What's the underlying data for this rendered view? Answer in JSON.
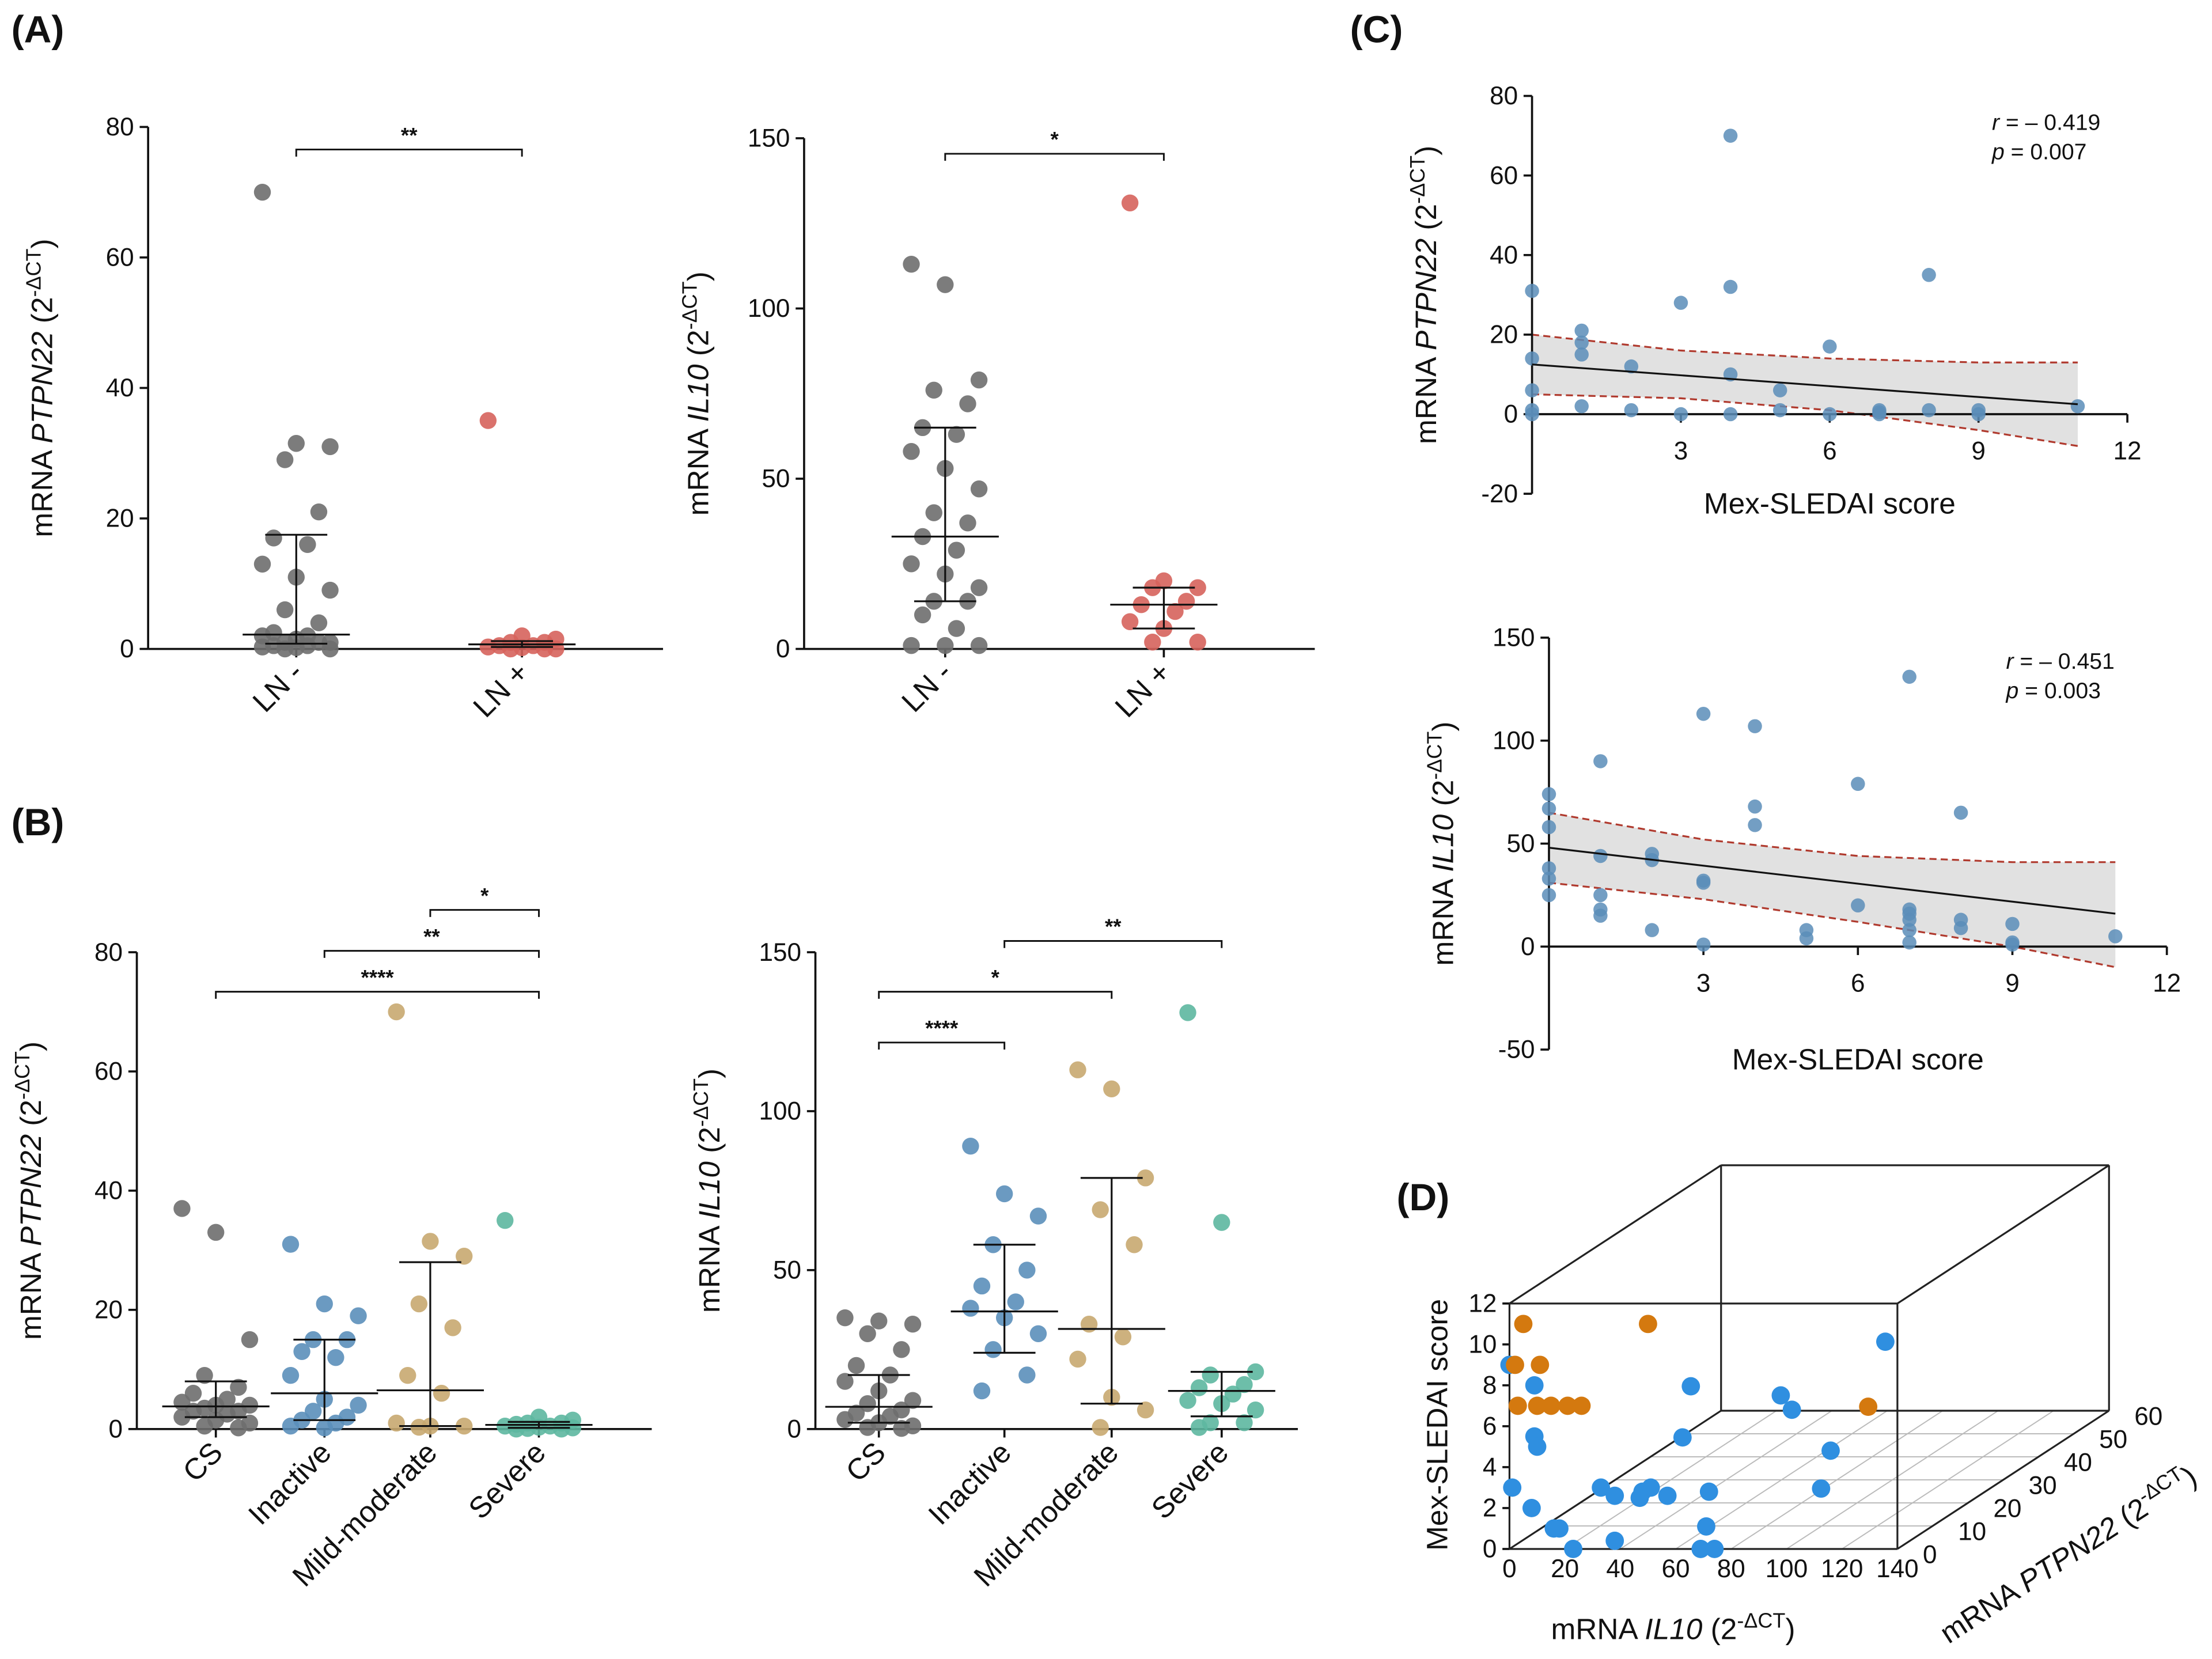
{
  "panels": [
    "(A)",
    "(B)",
    "(C)",
    "(D)"
  ],
  "chart_data": [
    {
      "type": "dot",
      "ylabel": [
        "mRNA ",
        "PTPN22",
        " (2",
        "-ΔCT",
        ")"
      ],
      "categories": [
        "LN -",
        "LN +"
      ],
      "ylim": [
        0,
        80
      ],
      "yticks": [
        0,
        20,
        40,
        60,
        80
      ],
      "groups": [
        {
          "color": "#6e6e6e",
          "values": [
            70,
            31.5,
            31,
            29,
            21,
            17,
            16,
            13,
            11,
            9,
            6,
            4,
            2.5,
            2,
            2,
            1.5,
            1,
            1,
            1,
            0.5,
            0.5,
            0.3,
            0.2,
            0,
            0
          ],
          "median": 2.2,
          "iqr": [
            0.8,
            17.5
          ]
        },
        {
          "color": "#d6635c",
          "values": [
            35,
            2,
            1.5,
            1,
            1,
            0.5,
            0.5,
            0.3,
            0.2,
            0,
            0,
            0
          ],
          "median": 0.7,
          "iqr": [
            0.3,
            1.2
          ]
        }
      ],
      "brackets": [
        {
          "from": 0,
          "to": 1,
          "label": "**"
        }
      ]
    },
    {
      "type": "dot",
      "ylabel": [
        "mRNA ",
        "IL10",
        " (2",
        "-ΔCT",
        ")"
      ],
      "categories": [
        "LN -",
        "LN +"
      ],
      "ylim": [
        0,
        150
      ],
      "yticks": [
        0,
        50,
        100,
        150
      ],
      "groups": [
        {
          "color": "#6e6e6e",
          "values": [
            113,
            107,
            79,
            76,
            72,
            65,
            63,
            58,
            53,
            47,
            40,
            37,
            33,
            29,
            25,
            22,
            18,
            14,
            14,
            10,
            6,
            1,
            1,
            1
          ],
          "median": 33,
          "iqr": [
            14,
            65
          ]
        },
        {
          "color": "#d6635c",
          "values": [
            131,
            20,
            18,
            18,
            14,
            13,
            11,
            8,
            6,
            2,
            2
          ],
          "median": 13,
          "iqr": [
            6,
            18
          ]
        }
      ],
      "brackets": [
        {
          "from": 0,
          "to": 1,
          "label": "*"
        }
      ]
    },
    {
      "type": "dot",
      "ylabel": [
        "mRNA ",
        "PTPN22",
        " (2",
        "-ΔCT",
        ")"
      ],
      "categories": [
        "CS",
        "Inactive",
        "Mild-moderate",
        "Severe"
      ],
      "ylim": [
        0,
        80
      ],
      "yticks": [
        0,
        20,
        40,
        60,
        80
      ],
      "groups": [
        {
          "color": "#6e6e6e",
          "values": [
            37,
            33,
            15,
            9,
            7,
            6,
            5,
            4.5,
            4,
            4,
            3.5,
            3,
            3,
            2.5,
            2,
            1.5,
            1,
            0.5,
            0.2
          ],
          "median": 3.8,
          "iqr": [
            2,
            8
          ]
        },
        {
          "color": "#5b8fba",
          "values": [
            31,
            21,
            19,
            15,
            15,
            13,
            12,
            9,
            5,
            4,
            3,
            2,
            1.5,
            1,
            0.5,
            0.2
          ],
          "median": 6,
          "iqr": [
            1.5,
            15
          ]
        },
        {
          "color": "#c8a870",
          "values": [
            70,
            31.5,
            29,
            21,
            17,
            9,
            6,
            1,
            0.5,
            0.5,
            0.3
          ],
          "median": 6.5,
          "iqr": [
            0.5,
            28
          ]
        },
        {
          "color": "#5db7a0",
          "values": [
            35,
            2,
            1.5,
            1,
            1,
            0.8,
            0.5,
            0.5,
            0.3,
            0.2,
            0.1,
            0,
            0
          ],
          "median": 0.7,
          "iqr": [
            0.2,
            1.2
          ]
        }
      ],
      "brackets": [
        {
          "from": 0,
          "to": 3,
          "label": "****"
        },
        {
          "from": 1,
          "to": 3,
          "label": "**"
        },
        {
          "from": 2,
          "to": 3,
          "label": "*"
        }
      ]
    },
    {
      "type": "dot",
      "ylabel": [
        "mRNA ",
        "IL10",
        " (2",
        "-ΔCT",
        ")"
      ],
      "categories": [
        "CS",
        "Inactive",
        "Mild-moderate",
        "Severe"
      ],
      "ylim": [
        0,
        150
      ],
      "yticks": [
        0,
        50,
        100,
        150
      ],
      "groups": [
        {
          "color": "#6e6e6e",
          "values": [
            35,
            34,
            33,
            30,
            25,
            20,
            17,
            15,
            12,
            9,
            8,
            6,
            5,
            4,
            3,
            2,
            1,
            0.5,
            0.2
          ],
          "median": 7,
          "iqr": [
            2,
            17
          ]
        },
        {
          "color": "#5b8fba",
          "values": [
            89,
            74,
            67,
            58,
            50,
            45,
            40,
            38,
            35,
            30,
            25,
            17,
            12
          ],
          "median": 37,
          "iqr": [
            24,
            58
          ]
        },
        {
          "color": "#c8a870",
          "values": [
            113,
            107,
            79,
            69,
            58,
            33,
            29,
            22,
            10,
            6,
            0.5
          ],
          "median": 31.5,
          "iqr": [
            8,
            79
          ]
        },
        {
          "color": "#5db7a0",
          "values": [
            131,
            65,
            18,
            17,
            14,
            13,
            11,
            9,
            8,
            6,
            2,
            2,
            0.5
          ],
          "median": 12,
          "iqr": [
            4,
            18
          ]
        }
      ],
      "brackets": [
        {
          "from": 0,
          "to": 1,
          "label": "****"
        },
        {
          "from": 0,
          "to": 2,
          "label": "*"
        },
        {
          "from": 1,
          "to": 3,
          "label": "**"
        }
      ]
    },
    {
      "type": "scatter",
      "ylabel": [
        "mRNA ",
        "PTPN22",
        " (2",
        "-ΔCT",
        ")"
      ],
      "xlabel": "Mex-SLEDAI score",
      "xlim": [
        0,
        12
      ],
      "xticks": [
        3,
        6,
        9,
        12
      ],
      "ylim": [
        -20,
        80
      ],
      "yticks": [
        -20,
        0,
        20,
        40,
        60,
        80
      ],
      "color": "#5a8db8",
      "x": [
        0,
        0,
        0,
        0,
        0,
        1,
        1,
        1,
        1,
        2,
        2,
        3,
        3,
        4,
        4,
        4,
        4,
        5,
        5,
        6,
        6,
        7,
        7,
        7,
        8,
        8,
        9,
        9,
        11
      ],
      "y": [
        31,
        14,
        6,
        1,
        0,
        21,
        18,
        15,
        2,
        12,
        1,
        28,
        0,
        70,
        32,
        10,
        0,
        6,
        1,
        17,
        0,
        1,
        0,
        0.5,
        35,
        1,
        0,
        1,
        2
      ],
      "fit": {
        "x": [
          0,
          11
        ],
        "y": [
          12.5,
          2.5
        ]
      },
      "ci_upper": {
        "x": [
          0,
          3,
          6,
          9,
          11
        ],
        "y": [
          20,
          16,
          14,
          13,
          13
        ]
      },
      "ci_lower": {
        "x": [
          0,
          3,
          6,
          9,
          11
        ],
        "y": [
          5,
          4,
          1,
          -4,
          -8
        ]
      },
      "annotations": [
        {
          "var": "r",
          "text": " = – 0.419"
        },
        {
          "var": "p",
          "text": " = 0.007"
        }
      ]
    },
    {
      "type": "scatter",
      "ylabel": [
        "mRNA ",
        "IL10",
        " (2",
        "-ΔCT",
        ")"
      ],
      "xlabel": "Mex-SLEDAI score",
      "xlim": [
        0,
        12
      ],
      "xticks": [
        3,
        6,
        9,
        12
      ],
      "ylim": [
        -50,
        150
      ],
      "yticks": [
        -50,
        0,
        50,
        100,
        150
      ],
      "color": "#5a8db8",
      "x": [
        0,
        0,
        0,
        0,
        0,
        0,
        1,
        1,
        1,
        1,
        1,
        2,
        2,
        2,
        3,
        3,
        3,
        3,
        4,
        4,
        4,
        5,
        5,
        6,
        6,
        7,
        7,
        7,
        7,
        7,
        7,
        8,
        8,
        8,
        9,
        9,
        9,
        11
      ],
      "y": [
        74,
        67,
        58,
        38,
        33,
        25,
        90,
        44,
        25,
        18,
        15,
        45,
        42,
        8,
        113,
        32,
        31,
        1,
        107,
        68,
        59,
        8,
        4,
        79,
        20,
        131,
        18,
        16,
        13,
        8,
        2,
        65,
        13,
        9,
        11,
        2,
        1,
        5
      ],
      "fit": {
        "x": [
          0,
          11
        ],
        "y": [
          48,
          16
        ]
      },
      "ci_upper": {
        "x": [
          0,
          3,
          6,
          9,
          11
        ],
        "y": [
          65,
          52,
          44,
          41,
          41
        ]
      },
      "ci_lower": {
        "x": [
          0,
          3,
          6,
          9,
          11
        ],
        "y": [
          31,
          23,
          12,
          0,
          -10
        ]
      },
      "annotations": [
        {
          "var": "r",
          "text": " = – 0.451"
        },
        {
          "var": "p",
          "text": " = 0.003"
        }
      ]
    },
    {
      "type": "scatter3d",
      "xlabel": [
        "mRNA ",
        "IL10",
        " (2",
        "-ΔCT",
        ")"
      ],
      "ylabel": [
        "mRNA ",
        "PTPN22",
        " (2",
        "-ΔCT",
        ")"
      ],
      "zlabel": "Mex-SLEDAI score",
      "xlim": [
        0,
        140
      ],
      "xticks": [
        0,
        20,
        40,
        60,
        80,
        100,
        120,
        140
      ],
      "ylim": [
        0,
        60
      ],
      "yticks": [
        0,
        10,
        20,
        30,
        40,
        50,
        60
      ],
      "zlim": [
        0,
        12
      ],
      "zticks": [
        0,
        2,
        4,
        6,
        8,
        10,
        12
      ],
      "series": [
        {
          "color": "#2f8fe0",
          "x": [
            0,
            9,
            1,
            8,
            16,
            18,
            9,
            10,
            33,
            38,
            48,
            51,
            47,
            57,
            72,
            71,
            38,
            23,
            69,
            74,
            37,
            40,
            47,
            51,
            65,
            87,
            72
          ],
          "y": [
            0,
            0,
            0,
            0,
            0,
            0,
            0,
            0,
            0,
            0,
            0,
            0,
            0,
            0,
            0,
            0,
            0,
            0,
            0,
            0,
            20,
            20,
            40,
            40,
            40,
            20,
            50
          ],
          "z": [
            9,
            8,
            3,
            2,
            1,
            1,
            5.5,
            5,
            3,
            2.6,
            2.8,
            3,
            2.5,
            2.6,
            2.8,
            1.1,
            0.4,
            0,
            0,
            0,
            3.2,
            5.7,
            3,
            2.3,
            0.3,
            0.7,
            4.5
          ]
        },
        {
          "color": "#d4790f",
          "x": [
            5,
            50,
            2,
            11,
            3,
            10,
            15,
            21,
            26,
            104
          ],
          "y": [
            0,
            0,
            0,
            0,
            0,
            0,
            0,
            0,
            0,
            20
          ],
          "z": [
            11,
            11,
            9,
            9,
            7,
            7,
            7,
            7,
            7,
            4.7
          ]
        }
      ]
    }
  ]
}
